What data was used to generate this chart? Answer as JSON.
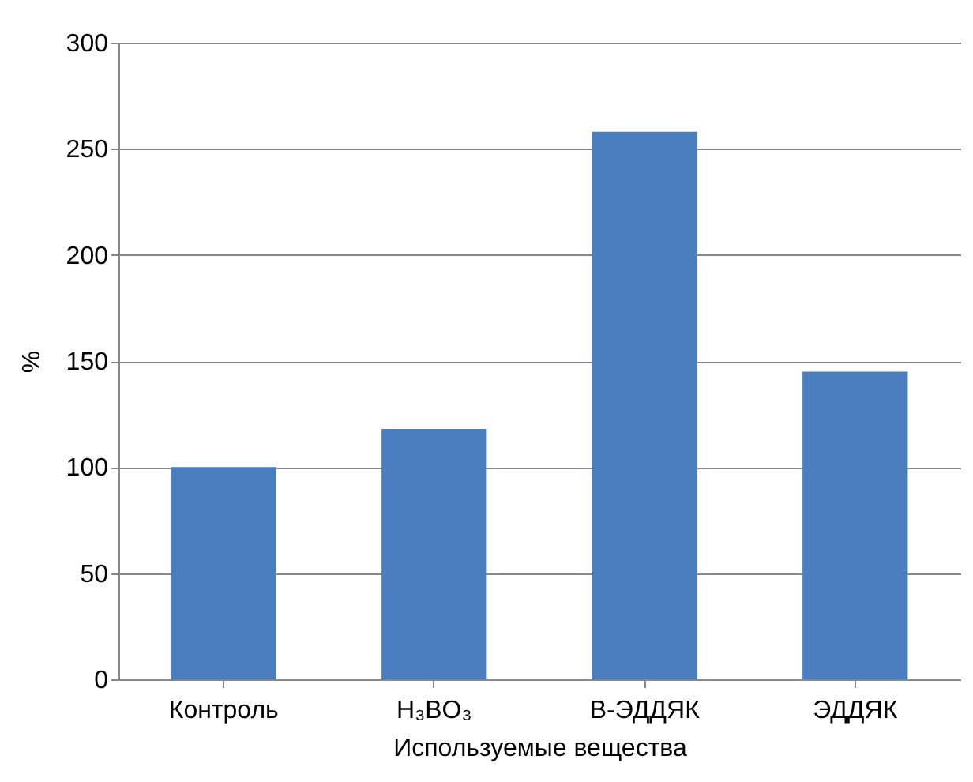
{
  "chart_data": {
    "type": "bar",
    "xlabel": "Используемые вещества",
    "ylabel": "%",
    "categories": [
      "Контроль",
      "H₃BO₃",
      "B-ЭДДЯК",
      "ЭДДЯК"
    ],
    "values": [
      100,
      118,
      258,
      145
    ],
    "color": "#4a7ebf",
    "ylim": [
      0,
      300
    ],
    "yticks": [
      0,
      50,
      100,
      150,
      200,
      250,
      300
    ],
    "grid": "y"
  }
}
